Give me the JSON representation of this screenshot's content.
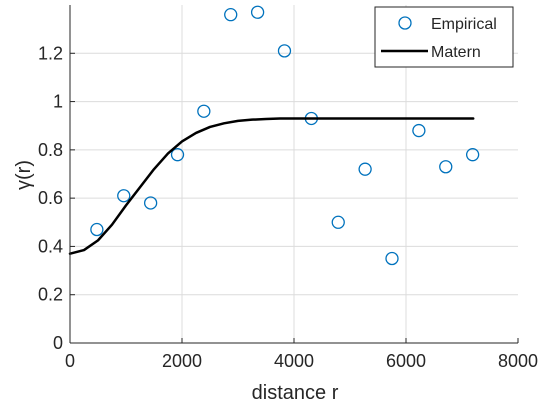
{
  "chart_data": {
    "type": "scatter",
    "xlabel": "distance r",
    "ylabel": "γ(r)",
    "xlim": [
      0,
      8000
    ],
    "ylim": [
      0,
      1.4
    ],
    "xticks": [
      0,
      2000,
      4000,
      6000,
      8000
    ],
    "yticks": [
      0,
      0.2,
      0.4,
      0.6,
      0.8,
      1,
      1.2
    ],
    "xtick_labels": [
      "0",
      "2000",
      "4000",
      "6000",
      "8000"
    ],
    "ytick_labels": [
      "0",
      "0.2",
      "0.4",
      "0.6",
      "0.8",
      "1",
      "1.2"
    ],
    "grid": true,
    "legend_position": "top-right",
    "series": [
      {
        "name": "Empirical",
        "kind": "markers",
        "marker": "open-circle",
        "color": "#0072BD",
        "x": [
          480,
          960,
          1440,
          1920,
          2390,
          2870,
          3350,
          3830,
          4310,
          4790,
          5270,
          5750,
          6230,
          6710,
          7190
        ],
        "y": [
          0.47,
          0.61,
          0.58,
          0.78,
          0.96,
          1.36,
          1.37,
          1.21,
          0.93,
          0.5,
          0.72,
          0.35,
          0.88,
          0.73,
          0.78
        ]
      },
      {
        "name": "Matern",
        "kind": "line",
        "color": "#000000",
        "x": [
          0,
          250,
          500,
          750,
          1000,
          1250,
          1500,
          1750,
          2000,
          2250,
          2500,
          2750,
          3000,
          3250,
          3500,
          3750,
          4000,
          4500,
          5000,
          6000,
          7200
        ],
        "y": [
          0.37,
          0.385,
          0.425,
          0.49,
          0.57,
          0.645,
          0.72,
          0.785,
          0.835,
          0.87,
          0.895,
          0.91,
          0.92,
          0.925,
          0.928,
          0.93,
          0.93,
          0.93,
          0.93,
          0.93,
          0.93
        ]
      }
    ]
  }
}
